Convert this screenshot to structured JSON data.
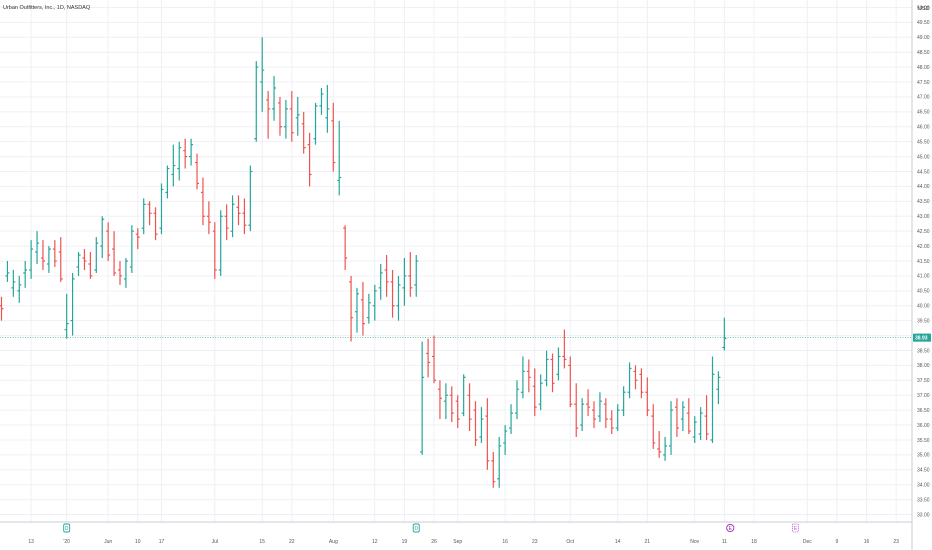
{
  "header": {
    "symbol": "Urban Outfitters, Inc., 1D, NASDAQ",
    "currency": "USD"
  },
  "colors": {
    "up": "#26a69a",
    "down": "#ef5350",
    "grid": "#eef0f5",
    "axis_line": "#c9ccd4",
    "price_tag": "#26a69a",
    "event_dividend": "#26a69a",
    "event_earnings": "#9c27b0",
    "event_upcoming": "#c05ad8"
  },
  "chart_data": {
    "type": "ohlc",
    "y_ticks": [
      "33.00",
      "33.50",
      "34.00",
      "34.50",
      "35.00",
      "35.50",
      "36.00",
      "36.50",
      "37.00",
      "37.50",
      "38.00",
      "38.50",
      "39.00",
      "39.50",
      "40.00",
      "40.50",
      "41.00",
      "41.50",
      "42.00",
      "42.50",
      "43.00",
      "43.50",
      "44.00",
      "44.50",
      "45.00",
      "45.50",
      "46.00",
      "46.50",
      "47.00",
      "47.50",
      "48.00",
      "48.50",
      "49.00",
      "49.50",
      "50.00"
    ],
    "ylim": [
      32.75,
      50.25
    ],
    "grid": true,
    "last_price": "38.93",
    "last_price_value": 38.93,
    "x_tick_labels": [
      {
        "label": "13",
        "bar": 5
      },
      {
        "label": "'20",
        "bar": 11
      },
      {
        "label": "Jun",
        "bar": 18
      },
      {
        "label": "10",
        "bar": 23
      },
      {
        "label": "17",
        "bar": 27
      },
      {
        "label": "Jul",
        "bar": 36
      },
      {
        "label": "15",
        "bar": 44
      },
      {
        "label": "22",
        "bar": 49
      },
      {
        "label": "Aug",
        "bar": 56
      },
      {
        "label": "12",
        "bar": 63
      },
      {
        "label": "19",
        "bar": 68
      },
      {
        "label": "26",
        "bar": 73
      },
      {
        "label": "Sep",
        "bar": 77
      },
      {
        "label": "16",
        "bar": 85
      },
      {
        "label": "23",
        "bar": 90
      },
      {
        "label": "Oct",
        "bar": 96
      },
      {
        "label": "14",
        "bar": 104
      },
      {
        "label": "21",
        "bar": 109
      },
      {
        "label": "Nov",
        "bar": 117
      },
      {
        "label": "11",
        "bar": 122
      },
      {
        "label": "18",
        "bar": 127
      },
      {
        "label": "Dec",
        "bar": 136
      },
      {
        "label": "9",
        "bar": 141
      },
      {
        "label": "16",
        "bar": 146
      },
      {
        "label": "23",
        "bar": 151
      }
    ],
    "events": [
      {
        "bar": 11,
        "text": "D",
        "kind": "dividend"
      },
      {
        "bar": 70,
        "text": "D",
        "kind": "dividend"
      },
      {
        "bar": 123,
        "text": "E",
        "kind": "earnings"
      },
      {
        "bar": 134,
        "text": "E",
        "kind": "upcoming"
      }
    ],
    "ohlc": [
      [
        40.0,
        40.3,
        39.5,
        39.9
      ],
      [
        41.0,
        41.5,
        40.8,
        41.1
      ],
      [
        40.6,
        41.2,
        40.3,
        40.8
      ],
      [
        40.5,
        41.0,
        40.1,
        40.7
      ],
      [
        41.1,
        41.5,
        40.6,
        41.2
      ],
      [
        41.2,
        42.2,
        40.9,
        41.9
      ],
      [
        41.8,
        42.5,
        41.4,
        42.1
      ],
      [
        41.6,
        42.2,
        41.2,
        41.5
      ],
      [
        41.4,
        42.0,
        41.1,
        41.9
      ],
      [
        41.9,
        42.2,
        41.3,
        41.5
      ],
      [
        41.8,
        42.3,
        40.8,
        40.9
      ],
      [
        39.2,
        40.4,
        38.9,
        39.4
      ],
      [
        39.5,
        41.1,
        39.0,
        40.9
      ],
      [
        41.3,
        41.8,
        41.0,
        41.7
      ],
      [
        41.6,
        41.9,
        41.2,
        41.5
      ],
      [
        41.4,
        41.8,
        40.9,
        41.0
      ],
      [
        41.2,
        42.3,
        41.1,
        42.1
      ],
      [
        42.0,
        43.0,
        41.6,
        42.9
      ],
      [
        42.5,
        42.8,
        41.5,
        41.7
      ],
      [
        41.9,
        42.5,
        41.0,
        41.1
      ],
      [
        41.2,
        41.5,
        40.7,
        41.0
      ],
      [
        40.9,
        41.6,
        40.6,
        41.5
      ],
      [
        41.3,
        42.7,
        41.1,
        42.5
      ],
      [
        42.4,
        42.6,
        41.9,
        42.3
      ],
      [
        42.6,
        43.6,
        42.4,
        43.4
      ],
      [
        43.4,
        43.5,
        42.7,
        43.1
      ],
      [
        43.1,
        43.3,
        42.2,
        42.4
      ],
      [
        42.6,
        44.1,
        42.4,
        43.9
      ],
      [
        43.8,
        44.7,
        43.6,
        44.6
      ],
      [
        44.4,
        45.4,
        44.0,
        44.7
      ],
      [
        44.6,
        45.5,
        44.2,
        45.3
      ],
      [
        45.2,
        45.6,
        44.6,
        45.0
      ],
      [
        45.0,
        45.6,
        44.7,
        45.4
      ],
      [
        44.8,
        45.1,
        43.9,
        44.1
      ],
      [
        43.8,
        44.3,
        42.7,
        43.0
      ],
      [
        43.0,
        43.5,
        42.4,
        42.8
      ],
      [
        42.5,
        42.8,
        40.9,
        41.2
      ],
      [
        41.2,
        43.2,
        41.0,
        43.0
      ],
      [
        43.0,
        43.4,
        42.2,
        42.6
      ],
      [
        42.5,
        43.7,
        42.3,
        43.4
      ],
      [
        43.3,
        43.7,
        42.7,
        43.1
      ],
      [
        43.1,
        43.6,
        42.4,
        42.7
      ],
      [
        42.7,
        44.7,
        42.5,
        44.5
      ],
      [
        45.6,
        48.2,
        45.5,
        48.0
      ],
      [
        47.5,
        49.0,
        46.5,
        47.9
      ],
      [
        46.9,
        47.2,
        45.6,
        46.6
      ],
      [
        46.6,
        47.7,
        46.2,
        47.3
      ],
      [
        46.8,
        47.0,
        45.7,
        46.0
      ],
      [
        46.0,
        46.9,
        45.6,
        46.6
      ],
      [
        46.6,
        47.2,
        45.5,
        45.8
      ],
      [
        46.3,
        47.0,
        45.7,
        46.4
      ],
      [
        46.1,
        46.5,
        45.1,
        45.3
      ],
      [
        45.4,
        45.8,
        44.0,
        44.4
      ],
      [
        45.6,
        46.8,
        45.4,
        46.7
      ],
      [
        46.7,
        47.3,
        46.4,
        47.1
      ],
      [
        46.3,
        47.4,
        45.8,
        46.6
      ],
      [
        46.2,
        46.8,
        44.5,
        44.8
      ],
      [
        44.2,
        46.2,
        43.7,
        44.3
      ],
      [
        42.6,
        42.7,
        41.2,
        41.6
      ],
      [
        40.8,
        41.0,
        38.8,
        39.6
      ],
      [
        39.8,
        40.6,
        39.1,
        40.4
      ],
      [
        40.2,
        40.8,
        39.0,
        39.4
      ],
      [
        39.6,
        40.4,
        39.4,
        40.1
      ],
      [
        40.0,
        40.7,
        39.5,
        40.5
      ],
      [
        40.6,
        41.4,
        40.2,
        41.1
      ],
      [
        41.2,
        41.7,
        40.3,
        40.8
      ],
      [
        40.8,
        41.2,
        39.6,
        40.0
      ],
      [
        40.0,
        41.0,
        39.5,
        40.7
      ],
      [
        40.6,
        41.6,
        40.0,
        41.0
      ],
      [
        41.0,
        41.8,
        40.3,
        40.6
      ],
      [
        40.7,
        41.7,
        40.3,
        41.5
      ],
      [
        35.1,
        38.8,
        35.0,
        37.6
      ],
      [
        38.4,
        38.9,
        37.6,
        38.1
      ],
      [
        38.3,
        39.0,
        37.4,
        37.5
      ],
      [
        37.2,
        37.5,
        36.2,
        36.9
      ],
      [
        36.8,
        37.4,
        36.2,
        37.0
      ],
      [
        37.0,
        37.3,
        36.1,
        36.4
      ],
      [
        36.8,
        37.0,
        35.9,
        36.2
      ],
      [
        36.4,
        37.7,
        36.3,
        37.6
      ],
      [
        37.0,
        37.4,
        35.8,
        36.2
      ],
      [
        36.5,
        36.8,
        35.3,
        35.5
      ],
      [
        35.6,
        36.6,
        35.4,
        36.2
      ],
      [
        36.3,
        36.9,
        34.5,
        34.8
      ],
      [
        34.8,
        35.1,
        33.9,
        34.1
      ],
      [
        34.2,
        35.6,
        33.9,
        35.3
      ],
      [
        35.4,
        36.0,
        35.0,
        35.8
      ],
      [
        35.9,
        36.7,
        35.7,
        36.4
      ],
      [
        36.4,
        37.5,
        36.2,
        37.2
      ],
      [
        37.1,
        38.3,
        36.9,
        37.8
      ],
      [
        37.8,
        38.2,
        37.1,
        37.6
      ],
      [
        37.3,
        37.9,
        36.3,
        36.6
      ],
      [
        36.7,
        37.7,
        36.5,
        37.4
      ],
      [
        37.5,
        38.5,
        37.3,
        38.2
      ],
      [
        38.2,
        38.4,
        37.1,
        37.4
      ],
      [
        37.7,
        38.6,
        37.5,
        38.3
      ],
      [
        38.3,
        39.2,
        37.9,
        38.2
      ],
      [
        38.0,
        38.3,
        36.6,
        36.7
      ],
      [
        36.7,
        37.4,
        35.6,
        35.9
      ],
      [
        36.0,
        36.9,
        35.8,
        36.7
      ],
      [
        36.7,
        37.2,
        36.3,
        36.6
      ],
      [
        36.5,
        36.8,
        35.9,
        36.2
      ],
      [
        36.3,
        37.1,
        36.1,
        36.8
      ],
      [
        36.7,
        36.9,
        35.9,
        36.2
      ],
      [
        36.2,
        36.5,
        35.7,
        35.9
      ],
      [
        35.9,
        36.7,
        35.8,
        36.5
      ],
      [
        36.5,
        37.3,
        36.3,
        37.1
      ],
      [
        37.1,
        38.1,
        36.9,
        37.9
      ],
      [
        37.8,
        38.0,
        37.2,
        37.5
      ],
      [
        37.7,
        37.9,
        36.9,
        37.1
      ],
      [
        37.1,
        37.6,
        36.3,
        36.5
      ],
      [
        36.3,
        36.7,
        35.2,
        35.4
      ],
      [
        35.2,
        35.8,
        34.9,
        35.1
      ],
      [
        35.0,
        35.6,
        34.8,
        35.3
      ],
      [
        35.3,
        36.8,
        35.0,
        36.5
      ],
      [
        36.6,
        36.9,
        35.6,
        35.9
      ],
      [
        36.2,
        36.8,
        35.8,
        36.6
      ],
      [
        36.4,
        36.9,
        35.7,
        35.8
      ],
      [
        35.6,
        36.3,
        35.4,
        36.1
      ],
      [
        35.7,
        36.6,
        35.5,
        36.4
      ],
      [
        36.3,
        37.0,
        35.5,
        35.7
      ],
      [
        35.5,
        38.3,
        35.4,
        37.7
      ],
      [
        37.2,
        37.8,
        36.7,
        37.6
      ],
      [
        38.6,
        39.6,
        38.5,
        38.9
      ]
    ]
  }
}
